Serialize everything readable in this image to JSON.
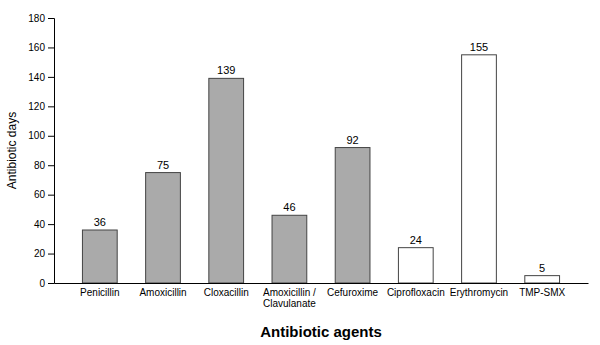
{
  "chart_data": {
    "type": "bar",
    "categories": [
      "Penicillin",
      "Amoxicillin",
      "Cloxacillin",
      "Amoxicillin /\nClavulanate",
      "Cefuroxime",
      "Ciprofloxacin",
      "Erythromycin",
      "TMP-SMX"
    ],
    "values": [
      36,
      75,
      139,
      46,
      92,
      24,
      155,
      5
    ],
    "colors": [
      "#aaaaaa",
      "#aaaaaa",
      "#aaaaaa",
      "#aaaaaa",
      "#aaaaaa",
      "#ffffff",
      "#ffffff",
      "#ffffff"
    ],
    "xlabel": "Antibiotic agents",
    "ylabel": "Antibiotic days",
    "ylim": [
      0,
      180
    ],
    "yticks": [
      0,
      20,
      40,
      60,
      80,
      100,
      120,
      140,
      160,
      180
    ],
    "grid": false,
    "data_labels": true
  }
}
